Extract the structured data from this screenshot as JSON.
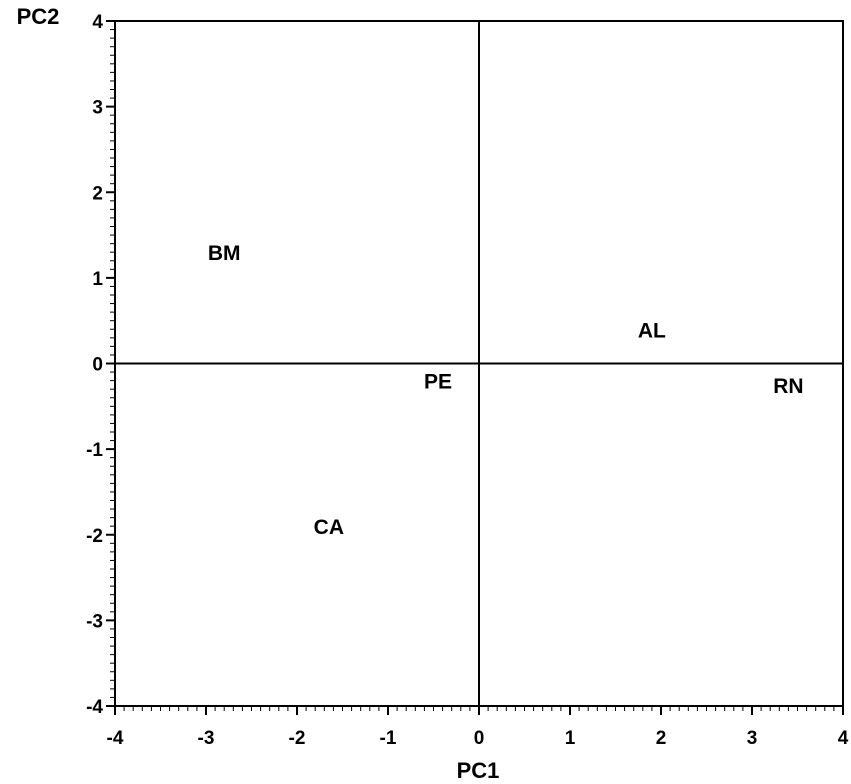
{
  "chart_data": {
    "type": "scatter",
    "title": "",
    "xlabel": "PC1",
    "ylabel": "PC2",
    "xlim": [
      -4,
      4
    ],
    "ylim": [
      -4,
      4
    ],
    "xticks": [
      -4,
      -3,
      -2,
      -1,
      0,
      1,
      2,
      3,
      4
    ],
    "yticks": [
      -4,
      -3,
      -2,
      -1,
      0,
      1,
      2,
      3,
      4
    ],
    "grid": false,
    "reference_lines": {
      "x": 0,
      "y": 0
    },
    "points": [
      {
        "label": "BM",
        "x": -2.8,
        "y": 1.3
      },
      {
        "label": "AL",
        "x": 1.9,
        "y": 0.4
      },
      {
        "label": "PE",
        "x": -0.45,
        "y": -0.2
      },
      {
        "label": "RN",
        "x": 3.4,
        "y": -0.25
      },
      {
        "label": "CA",
        "x": -1.65,
        "y": -1.9
      }
    ]
  }
}
